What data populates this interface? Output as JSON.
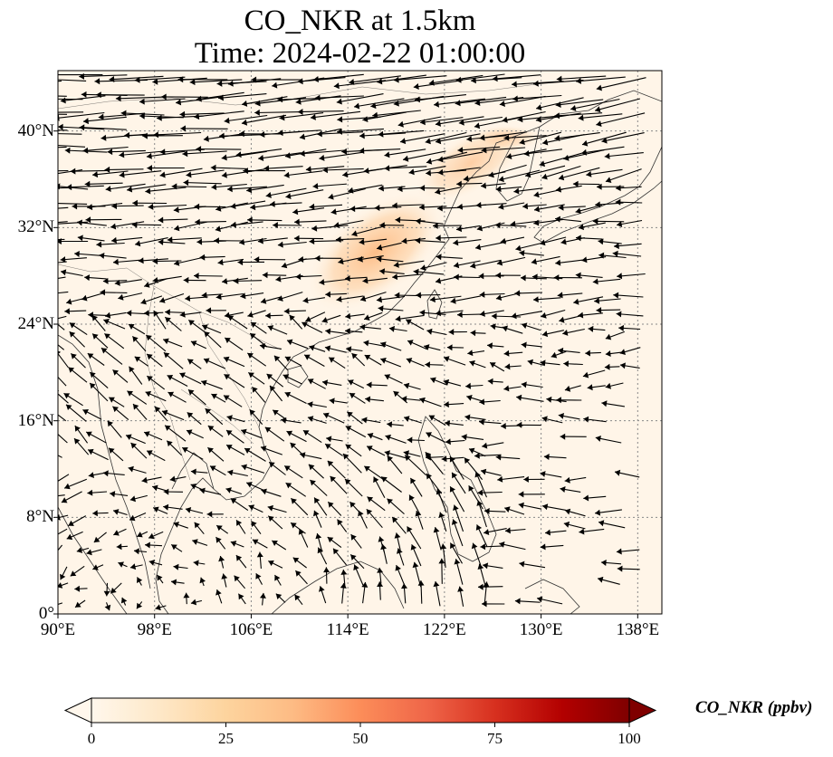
{
  "title": {
    "line1": "CO_NKR at 1.5km",
    "line2": "Time: 2024-02-22 01:00:00"
  },
  "map": {
    "lon_range": [
      90,
      140
    ],
    "lat_range": [
      0,
      45
    ],
    "x_ticks": [
      "90°E",
      "98°E",
      "106°E",
      "114°E",
      "122°E",
      "130°E",
      "138°E"
    ],
    "x_tick_values": [
      90,
      98,
      106,
      114,
      122,
      130,
      138
    ],
    "y_ticks": [
      "0°",
      "8°N",
      "16°N",
      "24°N",
      "32°N",
      "40°N"
    ],
    "y_tick_values": [
      0,
      8,
      16,
      24,
      32,
      40
    ],
    "gridlines": true,
    "gridline_style": "dotted",
    "background_color": "#fff5e8",
    "coastline_color": "#333333",
    "arrow_color": "#000000",
    "plume_color": "#fdbe85",
    "plume_region": "eastern China, approx. 112–125°E, 26–40°N"
  },
  "colorbar": {
    "label": "CO_NKR (ppbv)",
    "ticks": [
      "0",
      "25",
      "50",
      "75",
      "100"
    ],
    "tick_values": [
      0,
      25,
      50,
      75,
      100
    ],
    "range": [
      0,
      100
    ],
    "extend": "both",
    "colormap": "OrRd",
    "colors": [
      "#fff7ec",
      "#fee8c8",
      "#fdd49e",
      "#fdbb84",
      "#fc8d59",
      "#ef6548",
      "#d7301f",
      "#b30000",
      "#7f0000"
    ]
  }
}
